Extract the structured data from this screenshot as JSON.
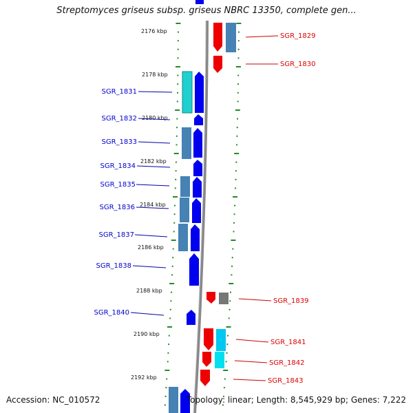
{
  "title": "Streptomyces griseus subsp. griseus NBRC 13350, complete gen...",
  "accession": "Accession: NC_010572",
  "summary": "Topology: linear; Length: 8,545,929 bp; Genes: 7,222",
  "colors": {
    "forward": "#0000ee",
    "reverse": "#ee0000",
    "steel": "#4682b4",
    "cyan_gene": "#20d0d0",
    "gray_gene": "#777777",
    "tick": "#228b22",
    "backbone": "#888888"
  },
  "scale": {
    "kbp_labels": [
      "2176 kbp",
      "2178 kbp",
      "2180 kbp",
      "2182 kbp",
      "2184 kbp",
      "2186 kbp",
      "2188 kbp",
      "2190 kbp",
      "2192 kbp"
    ]
  },
  "genes_left": [
    "SGR_1831",
    "SGR_1832",
    "SGR_1833",
    "SGR_1834",
    "SGR_1835",
    "SGR_1836",
    "SGR_1837",
    "SGR_1838",
    "SGR_1840"
  ],
  "genes_right": [
    "SGR_1829",
    "SGR_1830",
    "SGR_1839",
    "SGR_1841",
    "SGR_1842",
    "SGR_1843"
  ]
}
